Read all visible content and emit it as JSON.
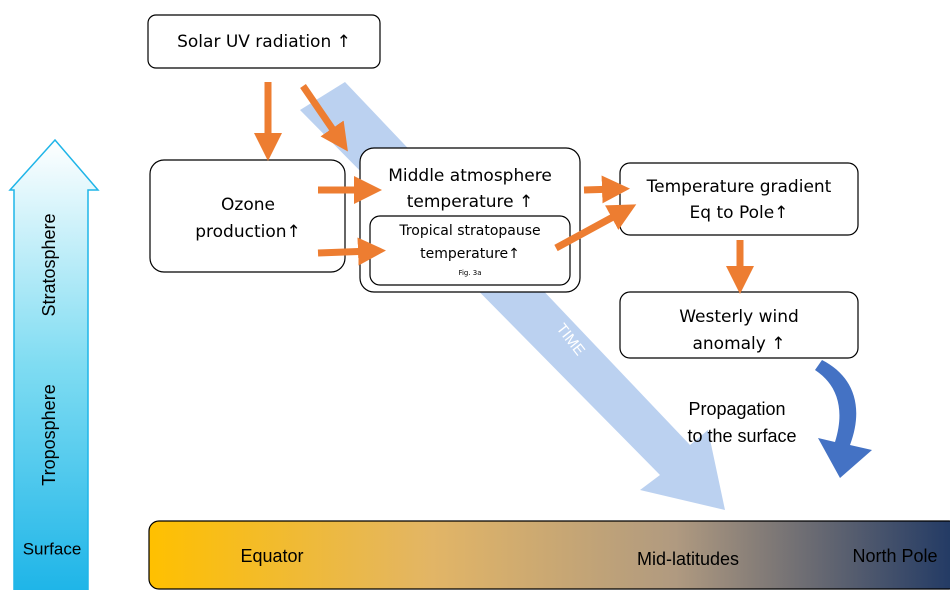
{
  "nodes": [
    {
      "label": [
        "Solar UV radiation ↑"
      ]
    },
    {
      "label": [
        "Ozone",
        "production↑"
      ]
    },
    {
      "label": [
        "Middle atmosphere",
        "temperature ↑"
      ]
    },
    {
      "label": [
        "Tropical stratopause",
        "temperature↑"
      ],
      "note": "Fig. 3a"
    },
    {
      "label": [
        "Temperature gradient",
        "Eq to Pole↑"
      ]
    },
    {
      "label": [
        "Westerly wind",
        "anomaly ↑"
      ]
    }
  ],
  "propagation": [
    "Propagation",
    "to the surface"
  ],
  "time_arrow": "TIME",
  "height_axis": {
    "upper": "Stratosphere",
    "lower": "Troposphere",
    "bottom": "Surface"
  },
  "latitude_bar": [
    "Equator",
    "Mid-latitudes",
    "North Pole"
  ]
}
